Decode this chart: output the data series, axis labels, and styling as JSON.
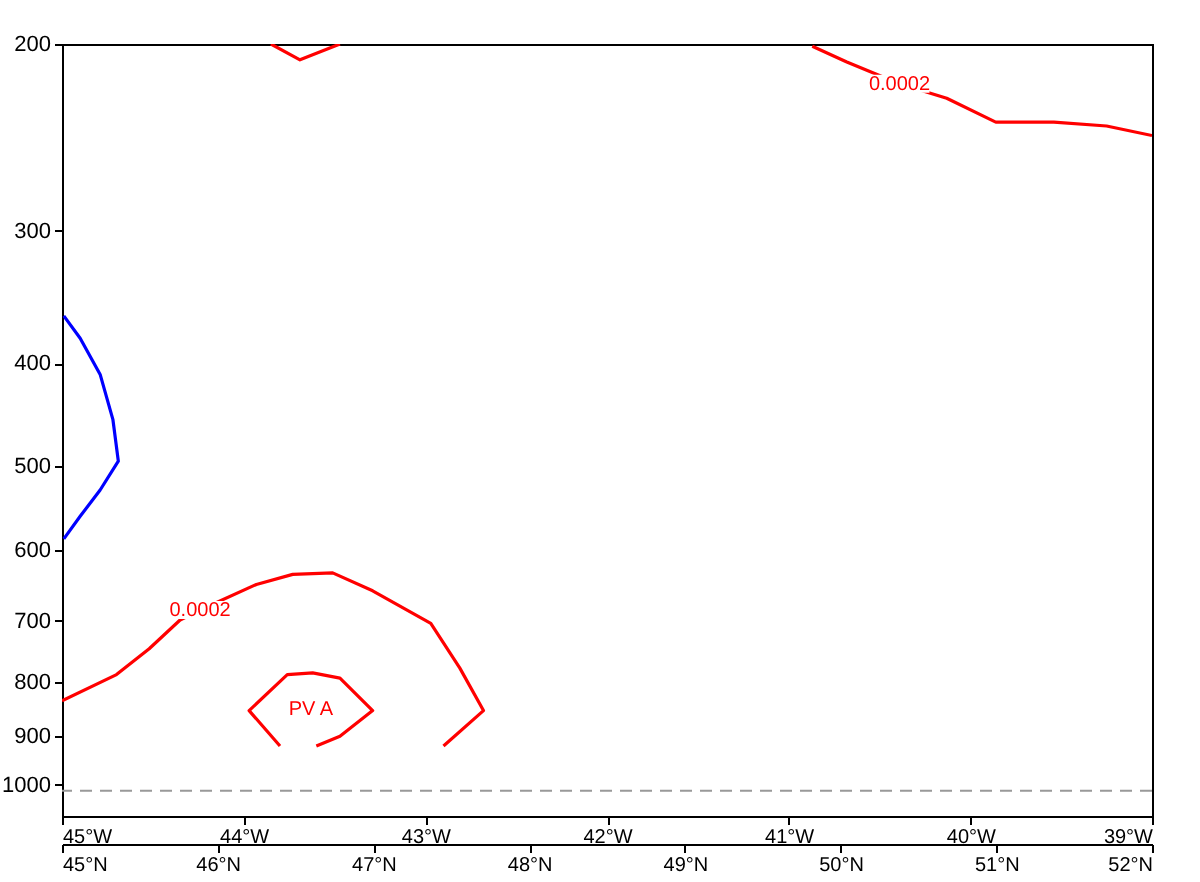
{
  "chart_data": {
    "type": "line",
    "xlim": [
      -45,
      -39
    ],
    "xticks": [
      {
        "value": -45,
        "label": "45°W"
      },
      {
        "value": -44,
        "label": "44°W"
      },
      {
        "value": -43,
        "label": "43°W"
      },
      {
        "value": -42,
        "label": "42°W"
      },
      {
        "value": -41,
        "label": "41°W"
      },
      {
        "value": -40,
        "label": "40°W"
      },
      {
        "value": -39,
        "label": "39°W"
      }
    ],
    "x2lim": [
      45,
      52
    ],
    "x2ticks": [
      {
        "value": 45,
        "label": "45°N"
      },
      {
        "value": 46,
        "label": "46°N"
      },
      {
        "value": 47,
        "label": "47°N"
      },
      {
        "value": 48,
        "label": "48°N"
      },
      {
        "value": 49,
        "label": "49°N"
      },
      {
        "value": 50,
        "label": "50°N"
      },
      {
        "value": 51,
        "label": "51°N"
      },
      {
        "value": 52,
        "label": "52°N"
      }
    ],
    "ylim": [
      1070,
      200
    ],
    "yticks": [
      200,
      300,
      400,
      500,
      600,
      700,
      800,
      900,
      1000
    ],
    "log": "y",
    "grid": false,
    "series": [
      {
        "color": "#ff0000",
        "x": [
          -43.85,
          -43.69,
          -43.47
        ],
        "values": [
          200,
          207,
          200
        ]
      },
      {
        "color": "#0000ff",
        "x": [
          -44.99,
          -44.9,
          -44.79,
          -44.72,
          -44.69,
          -44.79,
          -44.9,
          -44.99
        ],
        "values": [
          361,
          379,
          410,
          452,
          495,
          527,
          558,
          586
        ]
      },
      {
        "color": "#ff0000",
        "x": [
          -45,
          -44.7,
          -44.52,
          -44.35,
          -44.24,
          -43.93,
          -43.73,
          -43.51,
          -43.29,
          -42.97,
          -42.81,
          -42.68,
          -42.9
        ],
        "values": [
          833,
          787,
          744,
          699,
          684,
          647,
          633,
          631,
          656,
          704,
          776,
          851,
          919
        ]
      },
      {
        "color": "#ff0000",
        "x": [
          -43.8,
          -43.97,
          -43.76,
          -43.62,
          -43.47,
          -43.29,
          -43.47,
          -43.6
        ],
        "values": [
          919,
          851,
          787,
          784,
          793,
          851,
          900,
          919
        ]
      },
      {
        "color": "#ff0000",
        "x": [
          -40.87,
          -40.68,
          -40.39,
          -40.13,
          -39.86,
          -39.54,
          -39.25,
          -39
        ],
        "values": [
          201,
          208,
          218,
          225,
          237,
          237,
          239,
          244
        ]
      }
    ],
    "ref_lines": [
      {
        "axis": "y",
        "value": 1013,
        "color": "#999999",
        "line_style": "dashed"
      }
    ],
    "annotations": [
      {
        "text": "0.0002",
        "x": -44.24,
        "y": 684
      },
      {
        "text": "0.0002",
        "x": -40.39,
        "y": 218
      },
      "PV A"
    ]
  }
}
